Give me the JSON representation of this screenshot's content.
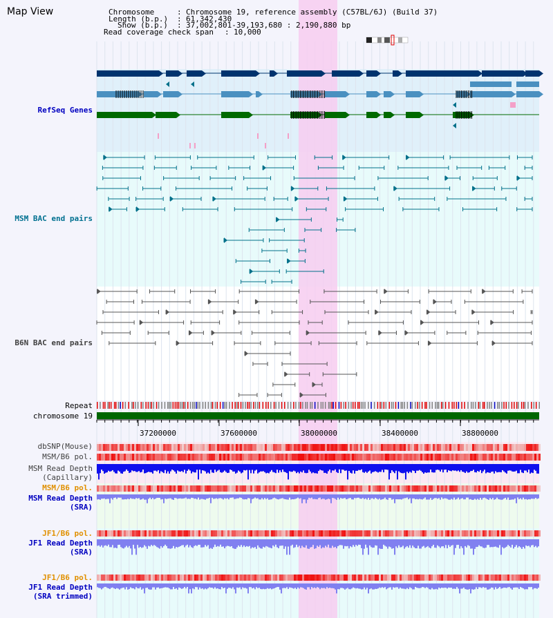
{
  "window": {
    "title": "Map View"
  },
  "info": {
    "chromosome_key": "Chromosome",
    "chromosome_val": "Chromosome 19, reference assembly (C57BL/6J) (Build 37)",
    "length_key": "Length (b.p.)",
    "length_val": "61,342,430",
    "show_key": "Show (b.p.)",
    "show_val": "37,002,801-39,193,680 : 2,190,880 bp",
    "coverage_key": "Read coverage check span",
    "coverage_val": "10,000"
  },
  "tracks": {
    "refseq": "RefSeq Genes",
    "msm_bac": "MSM BAC end pairs",
    "b6n_bac": "B6N BAC end pairs",
    "repeat": "Repeat",
    "chromosome": "chromosome 19",
    "dbsnp": "dbSNP(Mouse)",
    "msm_pol": "MSM/B6 pol.",
    "msm_depth_cap_1": "MSM Read Depth",
    "msm_depth_cap_2": "(Capillary)",
    "msm_pol2": "MSM/B6 pol.",
    "msm_depth_sra_1": "MSM Read Depth",
    "msm_depth_sra_2": "(SRA)",
    "jf1_pol": "JF1/B6 pol.",
    "jf1_depth_sra_1": "JF1 Read Depth",
    "jf1_depth_sra_2": "(SRA)",
    "jf1_pol2": "JF1/B6 pol.",
    "jf1_depth_trim_1": "JF1 Read Depth",
    "jf1_depth_trim_2": "(SRA trimmed)"
  },
  "axis": {
    "ticks": [
      "37200000",
      "37600000",
      "38000000",
      "38400000",
      "38800000"
    ]
  },
  "colors": {
    "refseq_label": "#0000c0",
    "msm_label": "#007090",
    "b6n_label": "#404040",
    "orange_label": "#e09000",
    "blue_label": "#0000c0",
    "highlight": "#f7cdf0",
    "gene_dark": "#00336e",
    "gene_mid": "#4a90c0",
    "gene_green": "#006a00",
    "bac_msm": "#00708a",
    "bac_b6n": "#555555",
    "chromosome_bar": "#006600",
    "depth_dark": "#1010ee",
    "depth_light": "#8080f0"
  }
}
